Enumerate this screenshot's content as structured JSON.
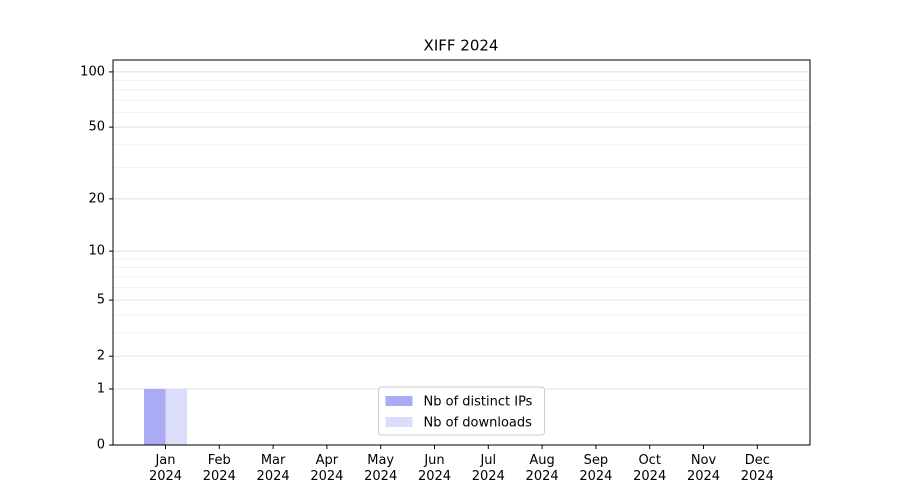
{
  "chart_data": {
    "type": "bar",
    "title": "XIFF 2024",
    "categories": [
      "Jan\n2024",
      "Feb\n2024",
      "Mar\n2024",
      "Apr\n2024",
      "May\n2024",
      "Jun\n2024",
      "Jul\n2024",
      "Aug\n2024",
      "Sep\n2024",
      "Oct\n2024",
      "Nov\n2024",
      "Dec\n2024"
    ],
    "series": [
      {
        "name": "Nb of distinct IPs",
        "color": "#aaaaf5",
        "values": [
          1,
          0,
          0,
          0,
          0,
          0,
          0,
          0,
          0,
          0,
          0,
          0
        ]
      },
      {
        "name": "Nb of downloads",
        "color": "#dcdcfb",
        "values": [
          1,
          0,
          0,
          0,
          0,
          0,
          0,
          0,
          0,
          0,
          0,
          0
        ]
      }
    ],
    "yscale": "log1p",
    "ylim": [
      0,
      116
    ],
    "yticks": [
      0,
      1,
      2,
      5,
      10,
      20,
      50,
      100
    ],
    "yminorticks": [
      3,
      4,
      6,
      7,
      8,
      9,
      30,
      40,
      60,
      70,
      80,
      90
    ],
    "grid": true,
    "legend": "lower center"
  }
}
